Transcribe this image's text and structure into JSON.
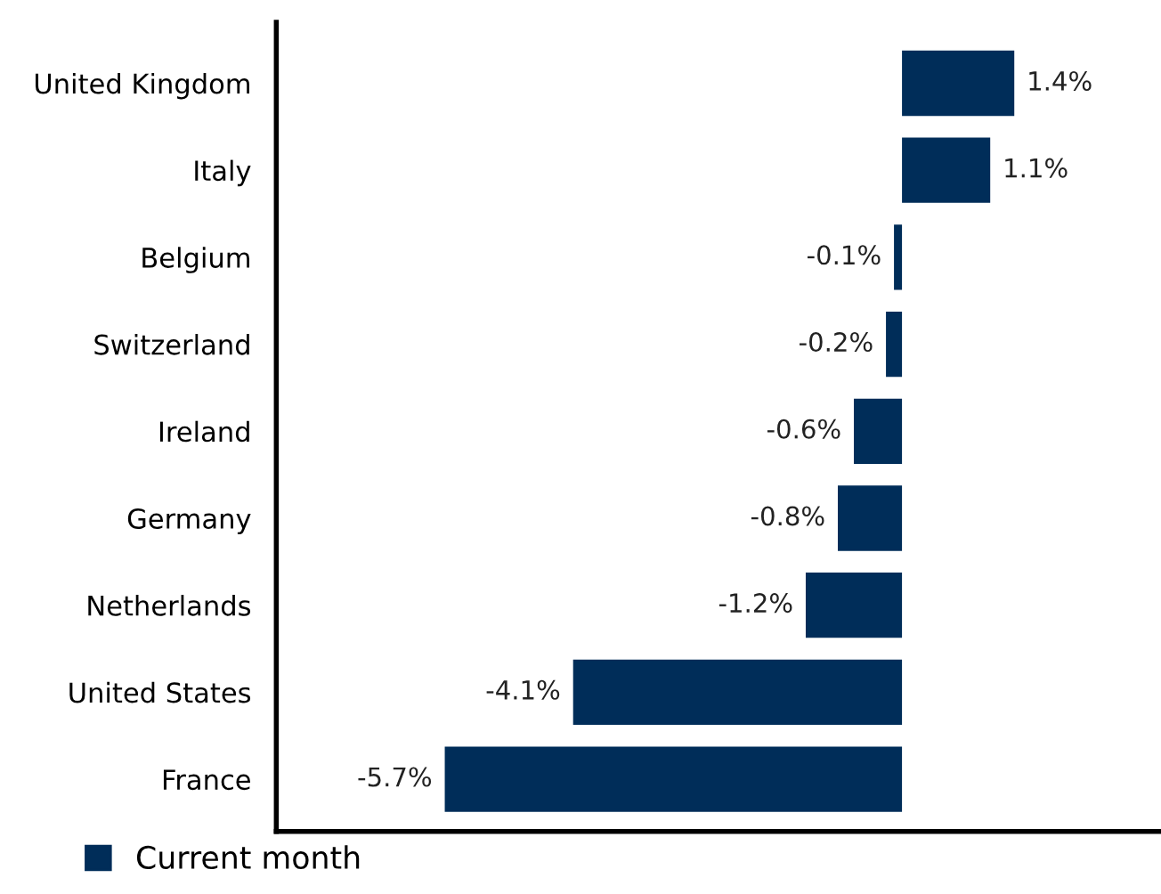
{
  "chart_data": {
    "type": "bar",
    "orientation": "horizontal",
    "categories": [
      "United Kingdom",
      "Italy",
      "Belgium",
      "Switzerland",
      "Ireland",
      "Germany",
      "Netherlands",
      "United States",
      "France"
    ],
    "series": [
      {
        "name": "Current month",
        "color": "#002d59",
        "values": [
          1.4,
          1.1,
          -0.1,
          -0.2,
          -0.6,
          -0.8,
          -1.2,
          -4.1,
          -5.7
        ],
        "value_labels": [
          "1.4%",
          "1.1%",
          "-0.1%",
          "-0.2%",
          "-0.6%",
          "-0.8%",
          "-1.2%",
          "-4.1%",
          "-5.7%"
        ]
      }
    ],
    "xlim": [
      -7.8,
      3.2
    ],
    "tick_labels": "y",
    "grid": false,
    "legend": "bottom left"
  }
}
